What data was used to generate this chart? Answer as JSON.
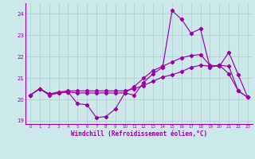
{
  "xlabel": "Windchill (Refroidissement éolien,°C)",
  "bg_color": "#cce8ea",
  "line_color": "#9900aa",
  "grid_color": "#aacccc",
  "hours": [
    0,
    1,
    2,
    3,
    4,
    5,
    6,
    7,
    8,
    9,
    10,
    11,
    12,
    13,
    14,
    15,
    16,
    17,
    18,
    19,
    20,
    21,
    22,
    23
  ],
  "windchill_main": [
    20.2,
    20.5,
    20.2,
    20.3,
    20.35,
    19.8,
    19.75,
    19.15,
    19.2,
    19.55,
    20.3,
    20.2,
    20.8,
    21.2,
    21.5,
    24.15,
    23.75,
    23.1,
    23.3,
    21.5,
    21.6,
    21.2,
    20.4,
    20.1
  ],
  "windchill_mid": [
    20.2,
    20.5,
    20.25,
    20.3,
    20.35,
    20.3,
    20.3,
    20.3,
    20.3,
    20.3,
    20.3,
    20.6,
    21.0,
    21.35,
    21.55,
    21.75,
    21.95,
    22.05,
    22.1,
    21.6,
    21.55,
    22.2,
    21.15,
    20.1
  ],
  "windchill_smooth": [
    20.2,
    20.5,
    20.25,
    20.35,
    20.4,
    20.4,
    20.4,
    20.4,
    20.4,
    20.4,
    20.4,
    20.5,
    20.65,
    20.85,
    21.05,
    21.15,
    21.3,
    21.5,
    21.6,
    21.55,
    21.6,
    21.55,
    20.4,
    20.1
  ],
  "ylim": [
    18.85,
    24.5
  ],
  "yticks": [
    19,
    20,
    21,
    22,
    23,
    24
  ],
  "xlim": [
    -0.5,
    23.5
  ]
}
